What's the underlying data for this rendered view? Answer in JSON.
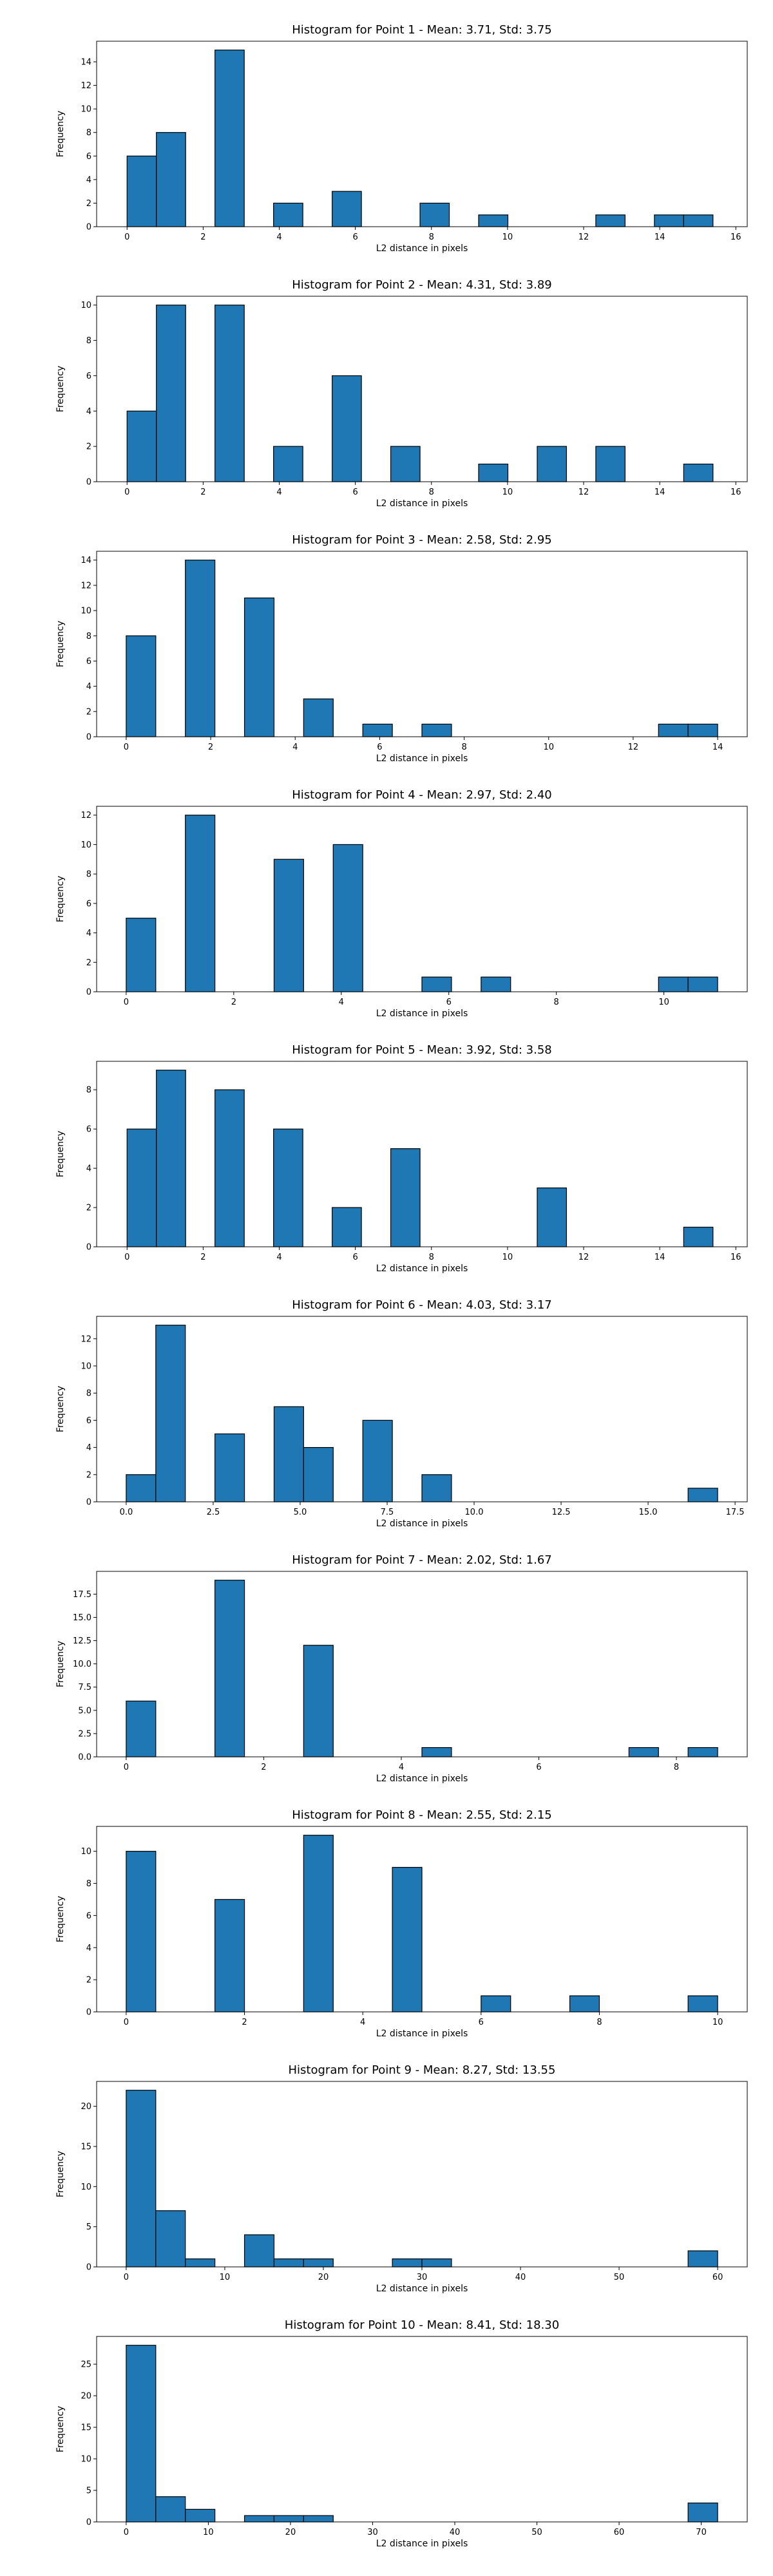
{
  "chart_data": [
    {
      "type": "bar",
      "title": "Histogram for Point 1 - Mean: 3.71, Std: 3.75",
      "xlabel": "L2 distance in pixels",
      "ylabel": "Frequency",
      "xlim": [
        -0.8,
        16.3
      ],
      "ylim": [
        0,
        15.75
      ],
      "xticks": [
        0,
        2,
        4,
        6,
        8,
        10,
        12,
        14,
        16
      ],
      "xtick_labels": [
        "0",
        "2",
        "4",
        "6",
        "8",
        "10",
        "12",
        "14",
        "16"
      ],
      "yticks": [
        0,
        2,
        4,
        6,
        8,
        10,
        12,
        14
      ],
      "ytick_labels": [
        "0",
        "2",
        "4",
        "6",
        "8",
        "10",
        "12",
        "14"
      ],
      "bars": [
        {
          "x0": 0.0,
          "x1": 0.77,
          "value": 6
        },
        {
          "x0": 0.77,
          "x1": 1.54,
          "value": 8
        },
        {
          "x0": 2.31,
          "x1": 3.08,
          "value": 15
        },
        {
          "x0": 3.85,
          "x1": 4.62,
          "value": 2
        },
        {
          "x0": 5.39,
          "x1": 6.16,
          "value": 3
        },
        {
          "x0": 7.7,
          "x1": 8.47,
          "value": 2
        },
        {
          "x0": 9.24,
          "x1": 10.01,
          "value": 1
        },
        {
          "x0": 12.32,
          "x1": 13.09,
          "value": 1
        },
        {
          "x0": 13.86,
          "x1": 14.63,
          "value": 1
        },
        {
          "x0": 14.63,
          "x1": 15.4,
          "value": 1
        }
      ]
    },
    {
      "type": "bar",
      "title": "Histogram for Point 2 - Mean: 4.31, Std: 3.89",
      "xlabel": "L2 distance in pixels",
      "ylabel": "Frequency",
      "xlim": [
        -0.8,
        16.3
      ],
      "ylim": [
        0,
        10.5
      ],
      "xticks": [
        0,
        2,
        4,
        6,
        8,
        10,
        12,
        14,
        16
      ],
      "xtick_labels": [
        "0",
        "2",
        "4",
        "6",
        "8",
        "10",
        "12",
        "14",
        "16"
      ],
      "yticks": [
        0,
        2,
        4,
        6,
        8,
        10
      ],
      "ytick_labels": [
        "0",
        "2",
        "4",
        "6",
        "8",
        "10"
      ],
      "bars": [
        {
          "x0": 0.0,
          "x1": 0.77,
          "value": 4
        },
        {
          "x0": 0.77,
          "x1": 1.54,
          "value": 10
        },
        {
          "x0": 2.31,
          "x1": 3.08,
          "value": 10
        },
        {
          "x0": 3.85,
          "x1": 4.62,
          "value": 2
        },
        {
          "x0": 5.39,
          "x1": 6.16,
          "value": 6
        },
        {
          "x0": 6.93,
          "x1": 7.7,
          "value": 2
        },
        {
          "x0": 9.24,
          "x1": 10.01,
          "value": 1
        },
        {
          "x0": 10.78,
          "x1": 11.55,
          "value": 2
        },
        {
          "x0": 12.32,
          "x1": 13.09,
          "value": 2
        },
        {
          "x0": 14.63,
          "x1": 15.4,
          "value": 1
        }
      ]
    },
    {
      "type": "bar",
      "title": "Histogram for Point 3 - Mean: 2.58, Std: 2.95",
      "xlabel": "L2 distance in pixels",
      "ylabel": "Frequency",
      "xlim": [
        -0.7,
        14.7
      ],
      "ylim": [
        0,
        14.7
      ],
      "xticks": [
        0,
        2,
        4,
        6,
        8,
        10,
        12,
        14
      ],
      "xtick_labels": [
        "0",
        "2",
        "4",
        "6",
        "8",
        "10",
        "12",
        "14"
      ],
      "yticks": [
        0,
        2,
        4,
        6,
        8,
        10,
        12,
        14
      ],
      "ytick_labels": [
        "0",
        "2",
        "4",
        "6",
        "8",
        "10",
        "12",
        "14"
      ],
      "bars": [
        {
          "x0": 0.0,
          "x1": 0.7,
          "value": 8
        },
        {
          "x0": 1.4,
          "x1": 2.1,
          "value": 14
        },
        {
          "x0": 2.8,
          "x1": 3.5,
          "value": 11
        },
        {
          "x0": 4.2,
          "x1": 4.9,
          "value": 3
        },
        {
          "x0": 5.6,
          "x1": 6.3,
          "value": 1
        },
        {
          "x0": 7.0,
          "x1": 7.7,
          "value": 1
        },
        {
          "x0": 12.6,
          "x1": 13.3,
          "value": 1
        },
        {
          "x0": 13.3,
          "x1": 14.0,
          "value": 1
        }
      ]
    },
    {
      "type": "bar",
      "title": "Histogram for Point 4 - Mean: 2.97, Std: 2.40",
      "xlabel": "L2 distance in pixels",
      "ylabel": "Frequency",
      "xlim": [
        -0.55,
        11.55
      ],
      "ylim": [
        0,
        12.6
      ],
      "xticks": [
        0,
        2,
        4,
        6,
        8,
        10
      ],
      "xtick_labels": [
        "0",
        "2",
        "4",
        "6",
        "8",
        "10"
      ],
      "yticks": [
        0,
        2,
        4,
        6,
        8,
        10,
        12
      ],
      "ytick_labels": [
        "0",
        "2",
        "4",
        "6",
        "8",
        "10",
        "12"
      ],
      "bars": [
        {
          "x0": 0.0,
          "x1": 0.55,
          "value": 5
        },
        {
          "x0": 1.1,
          "x1": 1.65,
          "value": 12
        },
        {
          "x0": 2.75,
          "x1": 3.3,
          "value": 9
        },
        {
          "x0": 3.85,
          "x1": 4.4,
          "value": 10
        },
        {
          "x0": 5.5,
          "x1": 6.05,
          "value": 1
        },
        {
          "x0": 6.6,
          "x1": 7.15,
          "value": 1
        },
        {
          "x0": 9.9,
          "x1": 10.45,
          "value": 1
        },
        {
          "x0": 10.45,
          "x1": 11.0,
          "value": 1
        }
      ]
    },
    {
      "type": "bar",
      "title": "Histogram for Point 5 - Mean: 3.92, Std: 3.58",
      "xlabel": "L2 distance in pixels",
      "ylabel": "Frequency",
      "xlim": [
        -0.8,
        16.3
      ],
      "ylim": [
        0,
        9.45
      ],
      "xticks": [
        0,
        2,
        4,
        6,
        8,
        10,
        12,
        14,
        16
      ],
      "xtick_labels": [
        "0",
        "2",
        "4",
        "6",
        "8",
        "10",
        "12",
        "14",
        "16"
      ],
      "yticks": [
        0,
        2,
        4,
        6,
        8
      ],
      "ytick_labels": [
        "0",
        "2",
        "4",
        "6",
        "8"
      ],
      "bars": [
        {
          "x0": 0.0,
          "x1": 0.77,
          "value": 6
        },
        {
          "x0": 0.77,
          "x1": 1.54,
          "value": 9
        },
        {
          "x0": 2.31,
          "x1": 3.08,
          "value": 8
        },
        {
          "x0": 3.85,
          "x1": 4.62,
          "value": 6
        },
        {
          "x0": 5.39,
          "x1": 6.16,
          "value": 2
        },
        {
          "x0": 6.93,
          "x1": 7.7,
          "value": 5
        },
        {
          "x0": 10.78,
          "x1": 11.55,
          "value": 3
        },
        {
          "x0": 14.63,
          "x1": 15.4,
          "value": 1
        }
      ]
    },
    {
      "type": "bar",
      "title": "Histogram for Point 6 - Mean: 4.03, Std: 3.17",
      "xlabel": "L2 distance in pixels",
      "ylabel": "Frequency",
      "xlim": [
        -0.85,
        17.85
      ],
      "ylim": [
        0,
        13.65
      ],
      "xticks": [
        0,
        2.5,
        5,
        7.5,
        10,
        12.5,
        15,
        17.5
      ],
      "xtick_labels": [
        "0.0",
        "2.5",
        "5.0",
        "7.5",
        "10.0",
        "12.5",
        "15.0",
        "17.5"
      ],
      "yticks": [
        0,
        2,
        4,
        6,
        8,
        10,
        12
      ],
      "ytick_labels": [
        "0",
        "2",
        "4",
        "6",
        "8",
        "10",
        "12"
      ],
      "bars": [
        {
          "x0": 0.0,
          "x1": 0.85,
          "value": 2
        },
        {
          "x0": 0.85,
          "x1": 1.7,
          "value": 13
        },
        {
          "x0": 2.55,
          "x1": 3.4,
          "value": 5
        },
        {
          "x0": 4.25,
          "x1": 5.1,
          "value": 7
        },
        {
          "x0": 5.1,
          "x1": 5.95,
          "value": 4
        },
        {
          "x0": 6.8,
          "x1": 7.65,
          "value": 6
        },
        {
          "x0": 8.5,
          "x1": 9.35,
          "value": 2
        },
        {
          "x0": 16.15,
          "x1": 17.0,
          "value": 1
        }
      ]
    },
    {
      "type": "bar",
      "title": "Histogram for Point 7 - Mean: 2.02, Std: 1.67",
      "xlabel": "L2 distance in pixels",
      "ylabel": "Frequency",
      "xlim": [
        -0.43,
        9.03
      ],
      "ylim": [
        0,
        19.95
      ],
      "xticks": [
        0,
        2,
        4,
        6,
        8
      ],
      "xtick_labels": [
        "0",
        "2",
        "4",
        "6",
        "8"
      ],
      "yticks": [
        0,
        2.5,
        5,
        7.5,
        10,
        12.5,
        15,
        17.5
      ],
      "ytick_labels": [
        "0.0",
        "2.5",
        "5.0",
        "7.5",
        "10.0",
        "12.5",
        "15.0",
        "17.5"
      ],
      "bars": [
        {
          "x0": 0.0,
          "x1": 0.43,
          "value": 6
        },
        {
          "x0": 1.29,
          "x1": 1.72,
          "value": 19
        },
        {
          "x0": 2.58,
          "x1": 3.01,
          "value": 12
        },
        {
          "x0": 4.3,
          "x1": 4.73,
          "value": 1
        },
        {
          "x0": 7.31,
          "x1": 7.74,
          "value": 1
        },
        {
          "x0": 8.17,
          "x1": 8.6,
          "value": 1
        }
      ]
    },
    {
      "type": "bar",
      "title": "Histogram for Point 8 - Mean: 2.55, Std: 2.15",
      "xlabel": "L2 distance in pixels",
      "ylabel": "Frequency",
      "xlim": [
        -0.5,
        10.5
      ],
      "ylim": [
        0,
        11.55
      ],
      "xticks": [
        0,
        2,
        4,
        6,
        8,
        10
      ],
      "xtick_labels": [
        "0",
        "2",
        "4",
        "6",
        "8",
        "10"
      ],
      "yticks": [
        0,
        2,
        4,
        6,
        8,
        10
      ],
      "ytick_labels": [
        "0",
        "2",
        "4",
        "6",
        "8",
        "10"
      ],
      "bars": [
        {
          "x0": 0.0,
          "x1": 0.5,
          "value": 10
        },
        {
          "x0": 1.5,
          "x1": 2.0,
          "value": 7
        },
        {
          "x0": 3.0,
          "x1": 3.5,
          "value": 11
        },
        {
          "x0": 4.5,
          "x1": 5.0,
          "value": 9
        },
        {
          "x0": 6.0,
          "x1": 6.5,
          "value": 1
        },
        {
          "x0": 7.5,
          "x1": 8.0,
          "value": 1
        },
        {
          "x0": 9.5,
          "x1": 10.0,
          "value": 1
        }
      ]
    },
    {
      "type": "bar",
      "title": "Histogram for Point 9 - Mean: 8.27, Std: 13.55",
      "xlabel": "L2 distance in pixels",
      "ylabel": "Frequency",
      "xlim": [
        -3.0,
        63.0
      ],
      "ylim": [
        0,
        23.1
      ],
      "xticks": [
        0,
        10,
        20,
        30,
        40,
        50,
        60
      ],
      "xtick_labels": [
        "0",
        "10",
        "20",
        "30",
        "40",
        "50",
        "60"
      ],
      "yticks": [
        0,
        5,
        10,
        15,
        20
      ],
      "ytick_labels": [
        "0",
        "5",
        "10",
        "15",
        "20"
      ],
      "bars": [
        {
          "x0": 0.0,
          "x1": 3.0,
          "value": 22
        },
        {
          "x0": 3.0,
          "x1": 6.0,
          "value": 7
        },
        {
          "x0": 6.0,
          "x1": 9.0,
          "value": 1
        },
        {
          "x0": 12.0,
          "x1": 15.0,
          "value": 4
        },
        {
          "x0": 15.0,
          "x1": 18.0,
          "value": 1
        },
        {
          "x0": 18.0,
          "x1": 21.0,
          "value": 1
        },
        {
          "x0": 27.0,
          "x1": 30.0,
          "value": 1
        },
        {
          "x0": 30.0,
          "x1": 33.0,
          "value": 1
        },
        {
          "x0": 57.0,
          "x1": 60.0,
          "value": 2
        }
      ]
    },
    {
      "type": "bar",
      "title": "Histogram for Point 10 - Mean: 8.41, Std: 18.30",
      "xlabel": "L2 distance in pixels",
      "ylabel": "Frequency",
      "xlim": [
        -3.6,
        75.6
      ],
      "ylim": [
        0,
        29.4
      ],
      "xticks": [
        0,
        10,
        20,
        30,
        40,
        50,
        60,
        70
      ],
      "xtick_labels": [
        "0",
        "10",
        "20",
        "30",
        "40",
        "50",
        "60",
        "70"
      ],
      "yticks": [
        0,
        5,
        10,
        15,
        20,
        25
      ],
      "ytick_labels": [
        "0",
        "5",
        "10",
        "15",
        "20",
        "25"
      ],
      "bars": [
        {
          "x0": 0.0,
          "x1": 3.6,
          "value": 28
        },
        {
          "x0": 3.6,
          "x1": 7.2,
          "value": 4
        },
        {
          "x0": 7.2,
          "x1": 10.8,
          "value": 2
        },
        {
          "x0": 14.4,
          "x1": 18.0,
          "value": 1
        },
        {
          "x0": 18.0,
          "x1": 21.6,
          "value": 1
        },
        {
          "x0": 21.6,
          "x1": 25.2,
          "value": 1
        },
        {
          "x0": 68.4,
          "x1": 72.0,
          "value": 3
        }
      ]
    }
  ],
  "colors": {
    "bar_fill": "#1f77b4",
    "bar_edge": "#000000",
    "axis": "#000000",
    "background": "#ffffff"
  }
}
